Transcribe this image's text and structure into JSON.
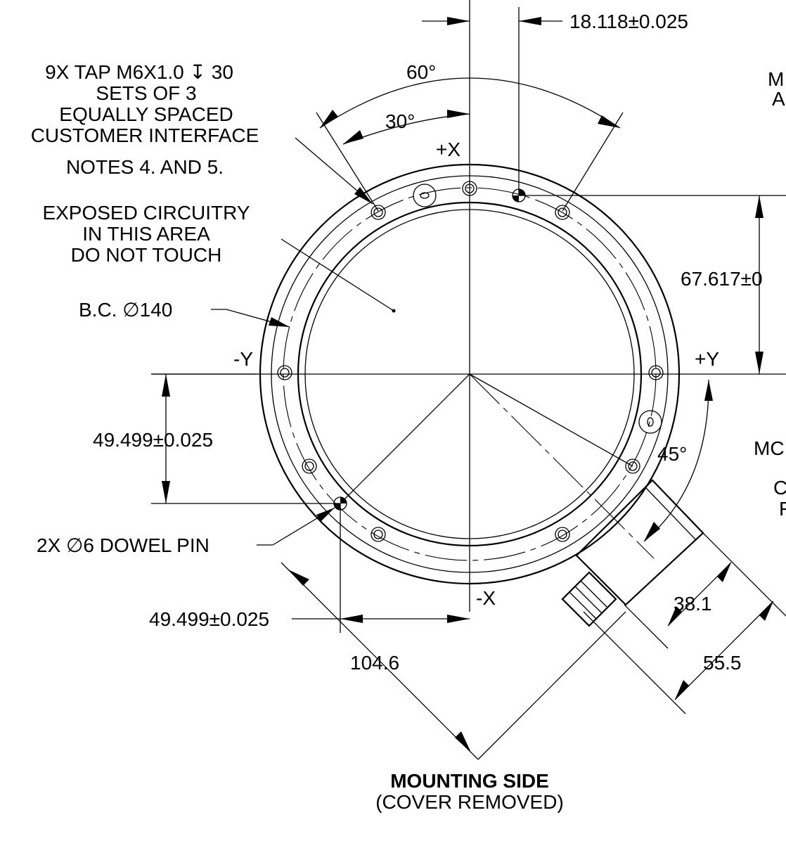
{
  "dimensions": {
    "top_offset": "18.118±0.025",
    "top_right_height": "67.617±0",
    "left_height": "49.499±0.025",
    "bottom_offset": "49.499±0.025",
    "diagonal": "104.6",
    "connector_width": "38.1",
    "connector_depth": "55.5",
    "angle_60": "60°",
    "angle_30": "30°",
    "angle_45": "45°"
  },
  "axes": {
    "plus_x": "+X",
    "minus_x": "-X",
    "plus_y": "+Y",
    "minus_y": "-Y"
  },
  "notes": {
    "tap": [
      "9X TAP M6X1.0 ↧ 30",
      "SETS OF 3",
      "EQUALLY SPACED",
      "CUSTOMER INTERFACE",
      "NOTES 4. AND 5."
    ],
    "circuitry": [
      "EXPOSED CIRCUITRY",
      "IN THIS AREA",
      "DO NOT TOUCH"
    ],
    "bolt_circle": "B.C. ∅140",
    "dowel": "2X ∅6 DOWEL PIN",
    "right_cut_1": [
      "M",
      "A"
    ],
    "right_cut_2": [
      "MC",
      "C",
      "F"
    ]
  },
  "caption": {
    "title": "MOUNTING SIDE",
    "subtitle": "(COVER REMOVED)"
  }
}
